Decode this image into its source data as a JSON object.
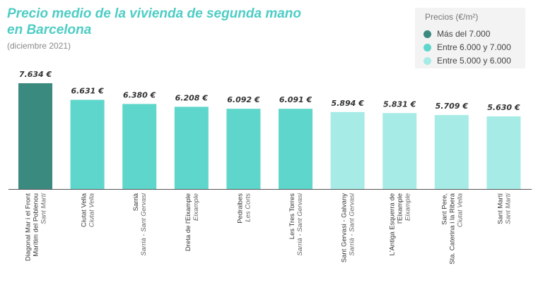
{
  "title_lines": [
    "Precio medio de la vivienda de segunda mano",
    "en Barcelona"
  ],
  "subtitle": "(diciembre 2021)",
  "legend": {
    "title": "Precios (€/m²)",
    "items": [
      {
        "label": "Más del 7.000",
        "color": "#3a8a80"
      },
      {
        "label": "Entre 6.000 y 7.000",
        "color": "#5fd6cb"
      },
      {
        "label": "Entre 5.000 y 6.000",
        "color": "#a7ebe6"
      }
    ]
  },
  "chart_data": {
    "type": "bar",
    "unit": "€/m²",
    "bars": [
      {
        "lines": [
          "Diagonal Mar i el Front",
          "Marítim del Poblenou"
        ],
        "district": "Sant Martí",
        "value": 7634,
        "label": "7.634 €",
        "color": "#3a8a80"
      },
      {
        "lines": [
          "Ciutat Vella"
        ],
        "district": "Ciutat Vella",
        "value": 6631,
        "label": "6.631 €",
        "color": "#5fd6cb"
      },
      {
        "lines": [
          "Sarrià"
        ],
        "district": "Sarrià - Sant Gervasi",
        "value": 6380,
        "label": "6.380 €",
        "color": "#5fd6cb"
      },
      {
        "lines": [
          "Dreta de l'Eixample"
        ],
        "district": "Eixample",
        "value": 6208,
        "label": "6.208 €",
        "color": "#5fd6cb"
      },
      {
        "lines": [
          "Pedralbes"
        ],
        "district": "Les Corts",
        "value": 6092,
        "label": "6.092 €",
        "color": "#5fd6cb"
      },
      {
        "lines": [
          "Les Tres Torres"
        ],
        "district": "Sarrià - Sant Gervasi",
        "value": 6091,
        "label": "6.091 €",
        "color": "#5fd6cb"
      },
      {
        "lines": [
          "Sant Gervasi - Galvany"
        ],
        "district": "Sarrià - Sant Gervasi",
        "value": 5894,
        "label": "5.894 €",
        "color": "#a7ebe6"
      },
      {
        "lines": [
          "L'Antiga Esquerra de",
          "l'Eixample"
        ],
        "district": "Eixample",
        "value": 5831,
        "label": "5.831 €",
        "color": "#a7ebe6"
      },
      {
        "lines": [
          "Sant Pere,",
          "Sta. Caterina i la Ribera"
        ],
        "district": "Ciutat Vella",
        "value": 5709,
        "label": "5.709 €",
        "color": "#a7ebe6"
      },
      {
        "lines": [
          "Sant Martí"
        ],
        "district": "Sant Martí",
        "value": 5630,
        "label": "5.630 €",
        "color": "#a7ebe6"
      }
    ]
  }
}
